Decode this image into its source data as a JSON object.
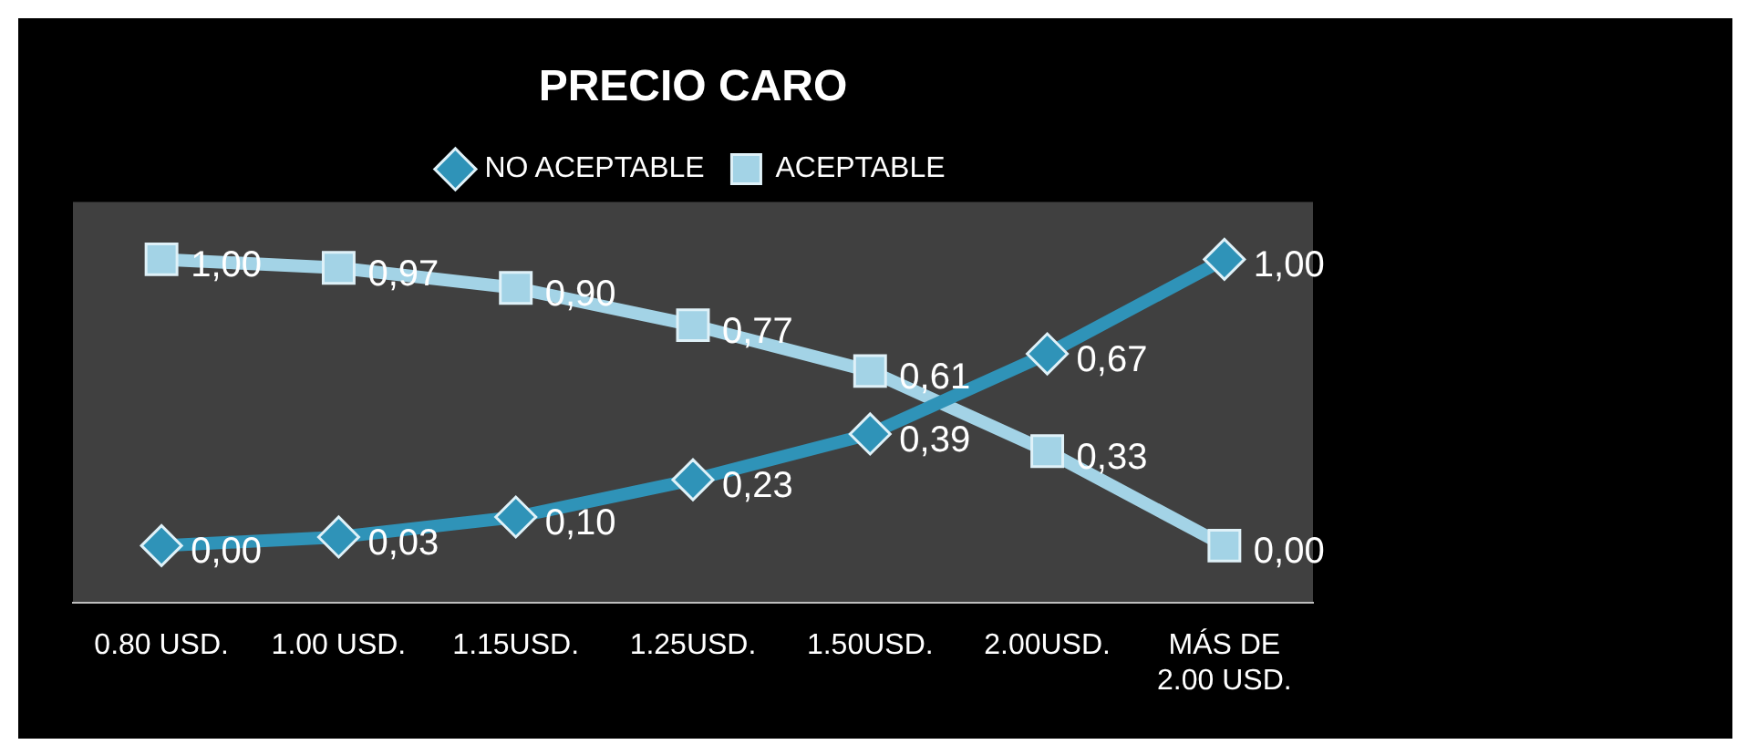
{
  "chart_data": {
    "type": "line",
    "title": "PRECIO CARO",
    "categories": [
      "0.80 USD.",
      "1.00 USD.",
      "1.15USD.",
      "1.25USD.",
      "1.50USD.",
      "2.00USD.",
      "MÁS DE 2.00 USD."
    ],
    "series": [
      {
        "name": "NO ACEPTABLE",
        "color": "#2f93b8",
        "marker": "diamond",
        "values": [
          0.0,
          0.03,
          0.1,
          0.23,
          0.39,
          0.67,
          1.0
        ],
        "value_labels": [
          "0,00",
          "0,03",
          "0,10",
          "0,23",
          "0,39",
          "0,67",
          "1,00"
        ]
      },
      {
        "name": "ACEPTABLE",
        "color": "#a3d3e6",
        "marker": "square",
        "values": [
          1.0,
          0.97,
          0.9,
          0.77,
          0.61,
          0.33,
          0.0
        ],
        "value_labels": [
          "1,00",
          "0,97",
          "0,90",
          "0,77",
          "0,61",
          "0,33",
          "0,00"
        ]
      }
    ],
    "legend": "top",
    "grid": false,
    "tick_labels": "x"
  }
}
